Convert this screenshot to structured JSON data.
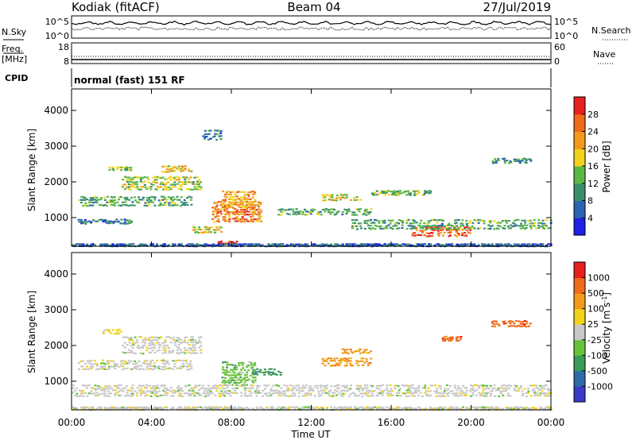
{
  "header": {
    "station": "Kodiak (fitACF)",
    "beam": "Beam 04",
    "date": "27/Jul/2019"
  },
  "panels": {
    "nsky": {
      "label": "N.Sky",
      "left_ticks": [
        "10^5",
        "10^0"
      ],
      "right_ticks": [
        "10^5",
        "10^0"
      ],
      "right_label": "N.Search"
    },
    "freq": {
      "label_line1": "Freq.",
      "label_line2": "[MHz]",
      "left_ticks": [
        "18",
        "8"
      ],
      "right_ticks": [
        "60",
        "0"
      ],
      "right_label": "Nave"
    },
    "cpid": {
      "label": "CPID",
      "text": "normal (fast) 151 RF"
    }
  },
  "colors": {
    "power": [
      "#1f1fe6",
      "#2b64b0",
      "#3a8f6a",
      "#5cb845",
      "#f2d21a",
      "#f29a1a",
      "#ef6a1a",
      "#e82020"
    ],
    "velocity": [
      "#3a3ac8",
      "#2e6aa8",
      "#3c9a5a",
      "#66c23a",
      "#c8c8c8",
      "#f2d21a",
      "#f29a1a",
      "#ef6a1a",
      "#e82020"
    ]
  },
  "chart_data": [
    {
      "type": "heatmap",
      "name": "power",
      "xlabel": "",
      "ylabel": "Slant Range [km]",
      "y_ticks": [
        "1000",
        "2000",
        "3000",
        "4000"
      ],
      "colorbar_label": "Power [dB]",
      "colorbar_ticks": [
        "28",
        "24",
        "20",
        "16",
        "12",
        "8",
        "4"
      ],
      "clim": [
        0,
        32
      ],
      "ylim": [
        200,
        4600
      ],
      "xlim": [
        0,
        24
      ],
      "blobs": [
        {
          "t0": 0.3,
          "t1": 6.0,
          "r0": 1350,
          "r1": 1650,
          "level": 12
        },
        {
          "t0": 0.3,
          "t1": 3.0,
          "r0": 850,
          "r1": 1000,
          "level": 8
        },
        {
          "t0": 2.5,
          "t1": 6.5,
          "r0": 1800,
          "r1": 2200,
          "level": 16
        },
        {
          "t0": 4.5,
          "t1": 6.0,
          "r0": 2300,
          "r1": 2500,
          "level": 20
        },
        {
          "t0": 1.8,
          "t1": 3.0,
          "r0": 2350,
          "r1": 2450,
          "level": 14
        },
        {
          "t0": 7.0,
          "t1": 9.5,
          "r0": 900,
          "r1": 1500,
          "level": 24
        },
        {
          "t0": 7.5,
          "t1": 9.2,
          "r0": 1300,
          "r1": 1800,
          "level": 22
        },
        {
          "t0": 6.0,
          "t1": 7.5,
          "r0": 600,
          "r1": 800,
          "level": 18
        },
        {
          "t0": 7.3,
          "t1": 8.3,
          "r0": 250,
          "r1": 380,
          "level": 28
        },
        {
          "t0": 10.3,
          "t1": 15.0,
          "r0": 1100,
          "r1": 1300,
          "level": 12
        },
        {
          "t0": 12.5,
          "t1": 14.5,
          "r0": 1500,
          "r1": 1700,
          "level": 18
        },
        {
          "t0": 15.0,
          "t1": 18.0,
          "r0": 1650,
          "r1": 1800,
          "level": 14
        },
        {
          "t0": 17.0,
          "t1": 20.0,
          "r0": 500,
          "r1": 800,
          "level": 26
        },
        {
          "t0": 14.0,
          "t1": 24.0,
          "r0": 700,
          "r1": 1000,
          "level": 12
        },
        {
          "t0": 21.0,
          "t1": 23.0,
          "r0": 2550,
          "r1": 2700,
          "level": 10
        },
        {
          "t0": 6.5,
          "t1": 7.5,
          "r0": 3200,
          "r1": 3500,
          "level": 8
        },
        {
          "t0": 0.0,
          "t1": 24.0,
          "r0": 220,
          "r1": 300,
          "level": 6
        }
      ]
    },
    {
      "type": "heatmap",
      "name": "velocity",
      "xlabel": "Time UT",
      "ylabel": "Slant Range [km]",
      "x_ticks": [
        "00:00",
        "04:00",
        "08:00",
        "12:00",
        "16:00",
        "20:00",
        "00:00"
      ],
      "y_ticks": [
        "1000",
        "2000",
        "3000",
        "4000"
      ],
      "colorbar_label": "Velocity [m s^-1]",
      "colorbar_ticks": [
        "1000",
        "500",
        "100",
        "25",
        "-25",
        "-100",
        "-500",
        "-1000"
      ],
      "ylim": [
        200,
        4600
      ],
      "xlim": [
        0,
        24
      ],
      "blobs": [
        {
          "t0": 0.3,
          "t1": 6.0,
          "r0": 1350,
          "r1": 1650,
          "cls": 4
        },
        {
          "t0": 2.5,
          "t1": 6.5,
          "r0": 1800,
          "r1": 2300,
          "cls": 4
        },
        {
          "t0": 7.5,
          "t1": 9.2,
          "r0": 900,
          "r1": 1600,
          "cls": 3
        },
        {
          "t0": 9.0,
          "t1": 10.5,
          "r0": 1200,
          "r1": 1400,
          "cls": 2
        },
        {
          "t0": 12.5,
          "t1": 15.0,
          "r0": 1450,
          "r1": 1700,
          "cls": 6
        },
        {
          "t0": 13.5,
          "t1": 15.0,
          "r0": 1800,
          "r1": 1950,
          "cls": 6
        },
        {
          "t0": 21.0,
          "t1": 23.0,
          "r0": 2550,
          "r1": 2750,
          "cls": 7
        },
        {
          "t0": 18.5,
          "t1": 19.5,
          "r0": 2150,
          "r1": 2300,
          "cls": 7
        },
        {
          "t0": 0.0,
          "t1": 24.0,
          "r0": 600,
          "r1": 950,
          "cls": 4
        },
        {
          "t0": 1.5,
          "t1": 2.5,
          "r0": 2350,
          "r1": 2500,
          "cls": 5
        },
        {
          "t0": 0.0,
          "t1": 24.0,
          "r0": 220,
          "r1": 320,
          "cls": 4
        }
      ]
    }
  ]
}
